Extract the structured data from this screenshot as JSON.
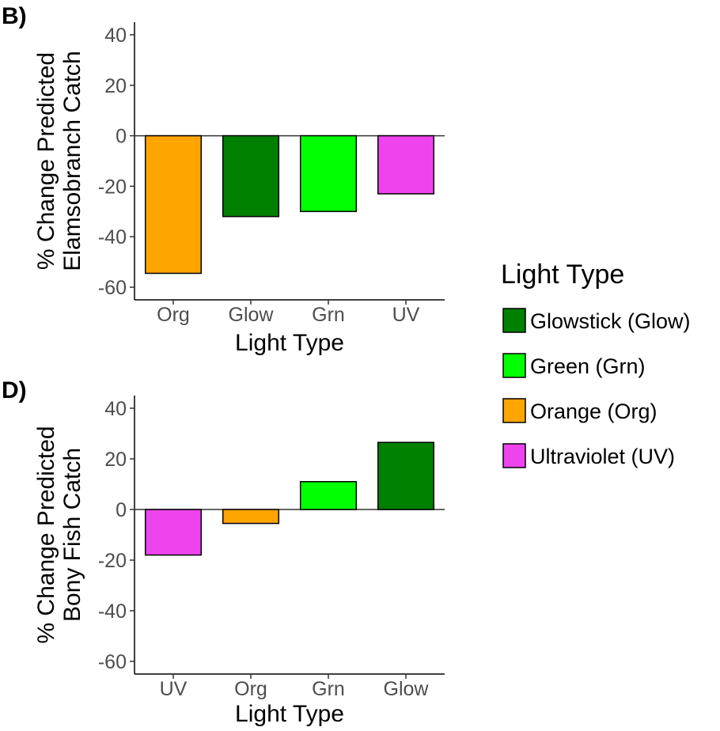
{
  "panels": {
    "b_label": "B)",
    "d_label": "D)"
  },
  "colors": {
    "Glow": "#008000",
    "Grn": "#00ff00",
    "Org": "#ffa500",
    "UV": "#ee44ee"
  },
  "legend": {
    "title": "Light Type",
    "items": [
      {
        "key": "Glow",
        "label": "Glowstick (Glow)"
      },
      {
        "key": "Grn",
        "label": "Green (Grn)"
      },
      {
        "key": "Org",
        "label": "Orange (Org)"
      },
      {
        "key": "UV",
        "label": "Ultraviolet (UV)"
      }
    ]
  },
  "chart_data": [
    {
      "type": "bar",
      "panel": "B)",
      "categories": [
        "Org",
        "Glow",
        "Grn",
        "UV"
      ],
      "values": [
        -54.5,
        -32,
        -30,
        -23
      ],
      "xlabel": "Light Type",
      "ylabel_line1": "% Change Predicted",
      "ylabel_line2": "Elamsobranch Catch",
      "ylim": [
        -65,
        45
      ],
      "yticks": [
        -60,
        -40,
        -20,
        0,
        20,
        40
      ],
      "ytick_labels": [
        "-60",
        "-40",
        "-20",
        "0",
        "20",
        "40"
      ],
      "grid": false,
      "legend_position": "right"
    },
    {
      "type": "bar",
      "panel": "D)",
      "categories": [
        "UV",
        "Org",
        "Grn",
        "Glow"
      ],
      "values": [
        -18,
        -5.5,
        11,
        26.5
      ],
      "xlabel": "Light Type",
      "ylabel_line1": "% Change Predicted",
      "ylabel_line2": "Bony Fish Catch",
      "ylim": [
        -65,
        45
      ],
      "yticks": [
        -60,
        -40,
        -20,
        0,
        20,
        40
      ],
      "ytick_labels": [
        "-60",
        "-40",
        "-20",
        "0",
        "20",
        "40"
      ],
      "grid": false,
      "legend_position": "right"
    }
  ]
}
